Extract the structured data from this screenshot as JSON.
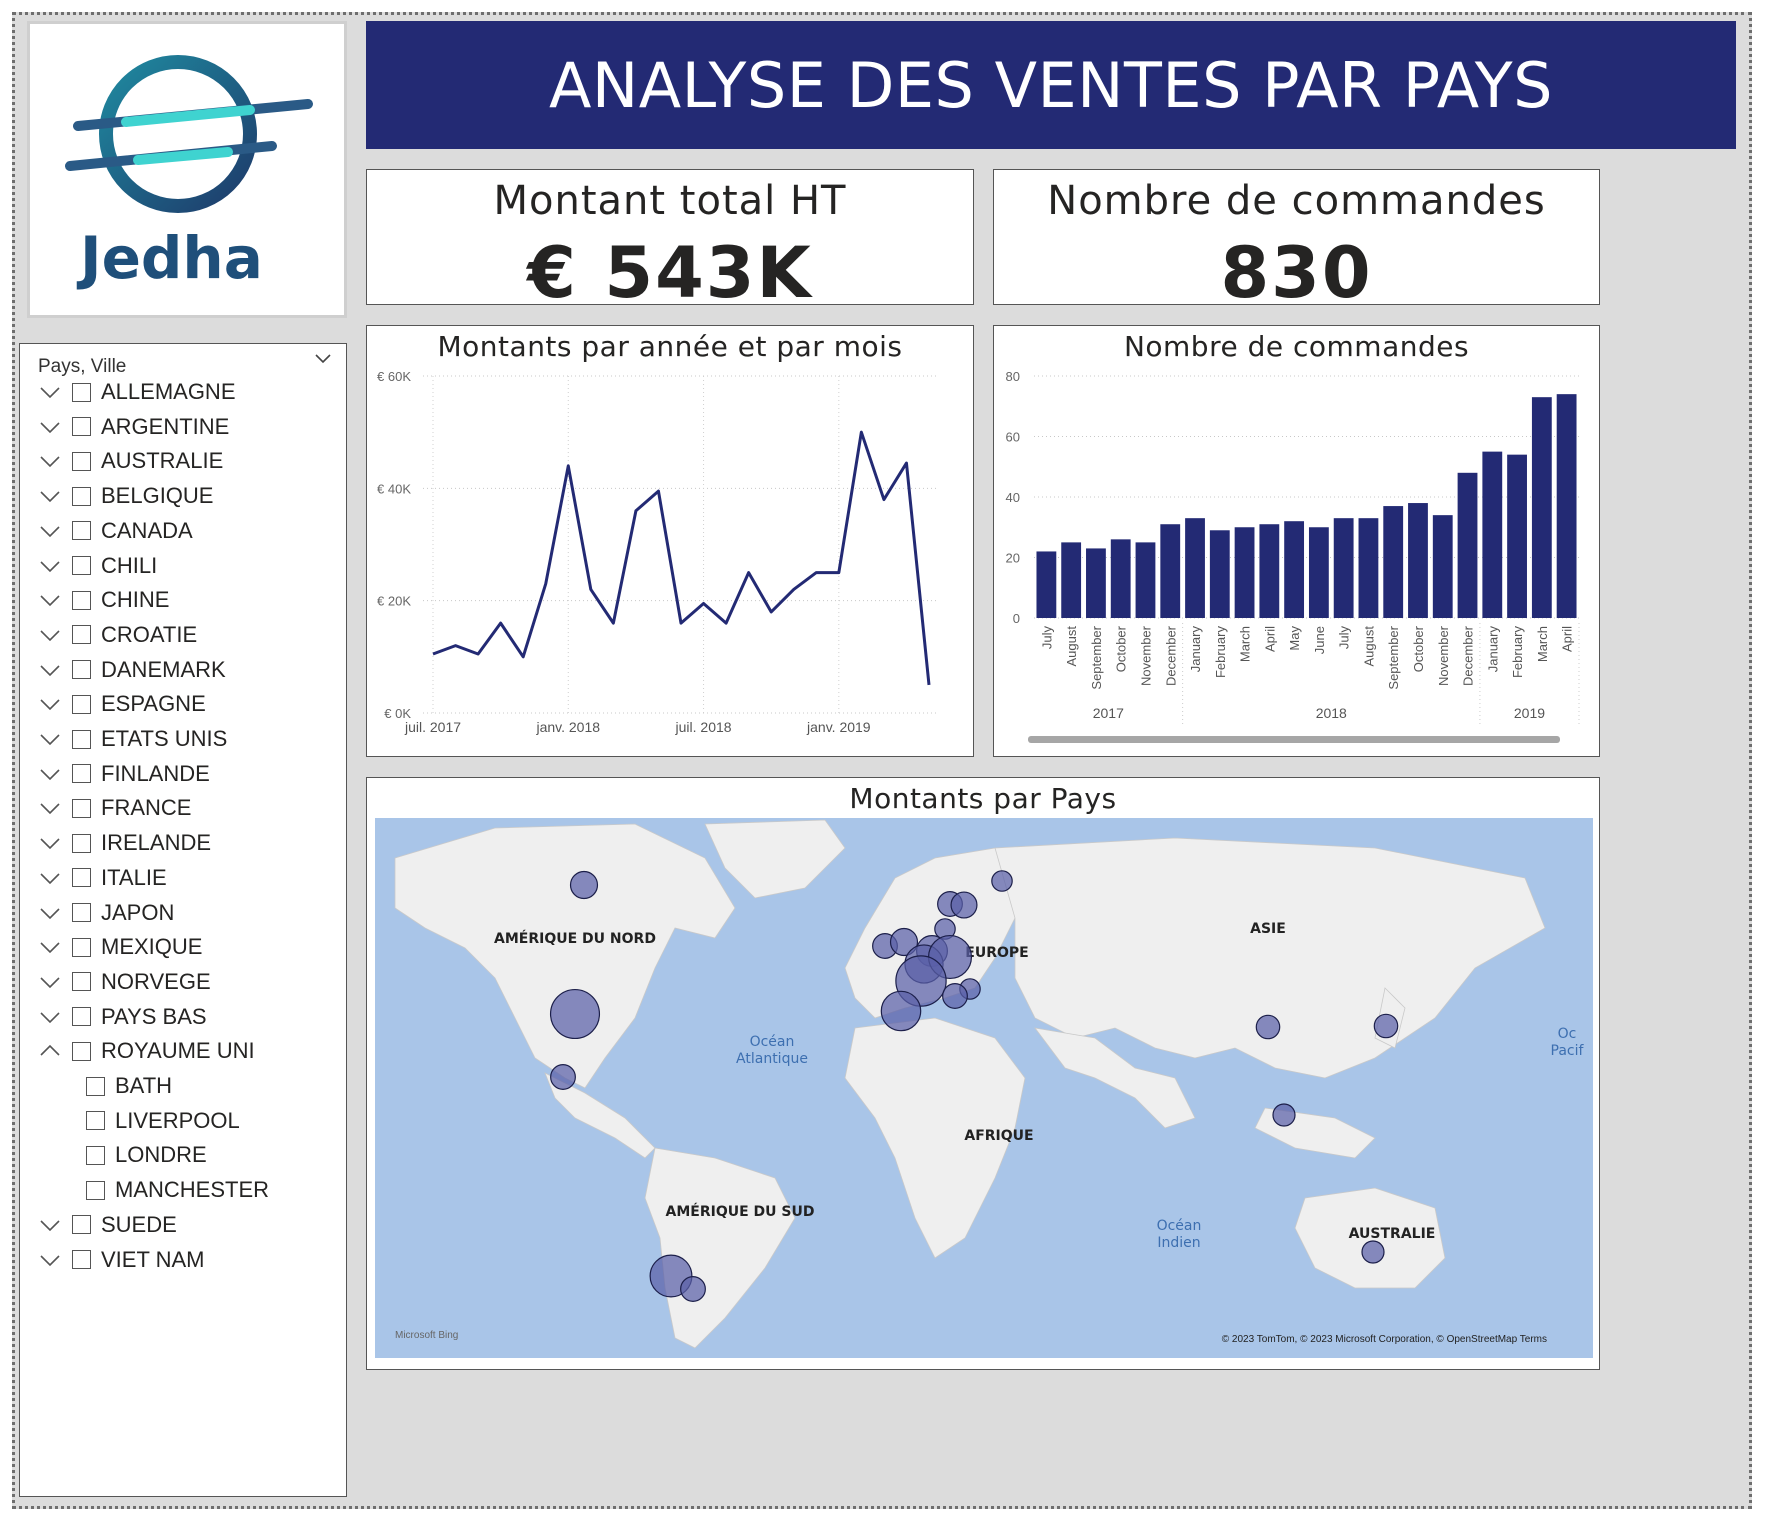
{
  "header": {
    "title": "ANALYSE DES VENTES PAR PAYS"
  },
  "logo": {
    "text": "Jedha",
    "icon": "jedha-logo-icon"
  },
  "kpis": {
    "total": {
      "title": "Montant total HT",
      "value": "€ 543K"
    },
    "orders": {
      "title": "Nombre de commandes",
      "value": "830"
    }
  },
  "slicer": {
    "header": "Pays, Ville",
    "items": [
      {
        "label": "ALLEMAGNE",
        "expanded": false
      },
      {
        "label": "ARGENTINE",
        "expanded": false
      },
      {
        "label": "AUSTRALIE",
        "expanded": false
      },
      {
        "label": "BELGIQUE",
        "expanded": false
      },
      {
        "label": "CANADA",
        "expanded": false
      },
      {
        "label": "CHILI",
        "expanded": false
      },
      {
        "label": "CHINE",
        "expanded": false
      },
      {
        "label": "CROATIE",
        "expanded": false
      },
      {
        "label": "DANEMARK",
        "expanded": false
      },
      {
        "label": "ESPAGNE",
        "expanded": false
      },
      {
        "label": "ETATS UNIS",
        "expanded": false
      },
      {
        "label": "FINLANDE",
        "expanded": false
      },
      {
        "label": "FRANCE",
        "expanded": false
      },
      {
        "label": "IRELANDE",
        "expanded": false
      },
      {
        "label": "ITALIE",
        "expanded": false
      },
      {
        "label": "JAPON",
        "expanded": false
      },
      {
        "label": "MEXIQUE",
        "expanded": false
      },
      {
        "label": "NORVEGE",
        "expanded": false
      },
      {
        "label": "PAYS BAS",
        "expanded": false
      },
      {
        "label": "ROYAUME UNI",
        "expanded": true,
        "children": [
          "BATH",
          "LIVERPOOL",
          "LONDRE",
          "MANCHESTER"
        ]
      },
      {
        "label": "SUEDE",
        "expanded": false
      },
      {
        "label": "VIET NAM",
        "expanded": false
      }
    ]
  },
  "colors": {
    "accent": "#232a74",
    "bar": "#232a74",
    "map_water": "#a9c5e8",
    "map_land": "#efefef",
    "bubble": "#5a5fa8"
  },
  "chart_data": [
    {
      "type": "line",
      "title": "Montants par année et par mois",
      "x": [
        "2017-07",
        "2017-08",
        "2017-09",
        "2017-10",
        "2017-11",
        "2017-12",
        "2018-01",
        "2018-02",
        "2018-03",
        "2018-04",
        "2018-05",
        "2018-06",
        "2018-07",
        "2018-08",
        "2018-09",
        "2018-10",
        "2018-11",
        "2018-12",
        "2019-01",
        "2019-02",
        "2019-03",
        "2019-04",
        "2019-05"
      ],
      "values": [
        10500,
        12000,
        10500,
        16000,
        10000,
        23000,
        44000,
        22000,
        16000,
        36000,
        39500,
        16000,
        19500,
        16000,
        25000,
        18000,
        22000,
        25000,
        25000,
        50000,
        38000,
        44500,
        5000
      ],
      "ylim": [
        0,
        60000
      ],
      "yticks": [
        "€ 60K",
        "€ 40K",
        "€ 20K",
        "€ 0K"
      ],
      "xticks": [
        "juil. 2017",
        "janv. 2018",
        "juil. 2018",
        "janv. 2019"
      ],
      "grid": true
    },
    {
      "type": "bar",
      "title": "Nombre de commandes",
      "categories": [
        "July",
        "August",
        "September",
        "October",
        "November",
        "December",
        "January",
        "February",
        "March",
        "April",
        "May",
        "June",
        "July",
        "August",
        "September",
        "October",
        "November",
        "December",
        "January",
        "February",
        "March",
        "April"
      ],
      "years": [
        {
          "label": "2017",
          "from": 0,
          "to": 5
        },
        {
          "label": "2018",
          "from": 6,
          "to": 17
        },
        {
          "label": "2019",
          "from": 18,
          "to": 21
        }
      ],
      "values": [
        22,
        25,
        23,
        26,
        25,
        31,
        33,
        29,
        30,
        31,
        32,
        30,
        33,
        33,
        37,
        38,
        34,
        48,
        55,
        54,
        73,
        74
      ],
      "ylim": [
        0,
        80
      ],
      "yticks": [
        "80",
        "60",
        "40",
        "20",
        "0"
      ],
      "grid": true
    }
  ],
  "map": {
    "title": "Montants par Pays",
    "region_labels": [
      {
        "text": "AMÉRIQUE DU NORD",
        "x": 200,
        "y": 125
      },
      {
        "text": "EUROPE",
        "x": 622,
        "y": 139
      },
      {
        "text": "ASIE",
        "x": 893,
        "y": 115
      },
      {
        "text": "AFRIQUE",
        "x": 624,
        "y": 322
      },
      {
        "text": "AMÉRIQUE DU SUD",
        "x": 365,
        "y": 398
      },
      {
        "text": "AUSTRALIE",
        "x": 1017,
        "y": 420
      }
    ],
    "ocean_labels": [
      {
        "lines": [
          "Océan",
          "Atlantique"
        ],
        "x": 397,
        "y": 228
      },
      {
        "lines": [
          "Océan",
          "Indien"
        ],
        "x": 804,
        "y": 412
      },
      {
        "lines": [
          "Oc",
          "Pacif"
        ],
        "x": 1192,
        "y": 220
      }
    ],
    "bubbles": [
      {
        "name": "CANADA",
        "lon": -94,
        "lat": 52,
        "value": 8
      },
      {
        "name": "ETATS UNIS",
        "lon": -97,
        "lat": 38,
        "value": 42
      },
      {
        "name": "MEXIQUE",
        "lon": -100,
        "lat": 21,
        "value": 6
      },
      {
        "name": "FINLANDE",
        "lon": 25,
        "lat": 62,
        "value": 3
      },
      {
        "name": "NORVEGE",
        "lon": 8,
        "lat": 59,
        "value": 6
      },
      {
        "name": "SUEDE",
        "lon": 15,
        "lat": 59,
        "value": 7
      },
      {
        "name": "DANEMARK",
        "lon": 10,
        "lat": 56,
        "value": 3
      },
      {
        "name": "IRELANDE",
        "lon": -8,
        "lat": 53,
        "value": 6
      },
      {
        "name": "ROYAUME UNI",
        "lon": -3,
        "lat": 54,
        "value": 8
      },
      {
        "name": "PAYS BAS",
        "lon": 5,
        "lat": 52,
        "value": 12
      },
      {
        "name": "BELGIQUE",
        "lon": 3,
        "lat": 51,
        "value": 22
      },
      {
        "name": "ALLEMAGNE",
        "lon": 10,
        "lat": 51,
        "value": 30
      },
      {
        "name": "FRANCE",
        "lon": 2,
        "lat": 47,
        "value": 45
      },
      {
        "name": "CROATIE",
        "lon": 16,
        "lat": 45,
        "value": 3
      },
      {
        "name": "ITALIE",
        "lon": 12,
        "lat": 43,
        "value": 6
      },
      {
        "name": "ESPAGNE",
        "lon": -4,
        "lat": 40,
        "value": 24
      },
      {
        "name": "CHINE",
        "lon": 104,
        "lat": 35,
        "value": 5
      },
      {
        "name": "JAPON",
        "lon": 138,
        "lat": 36,
        "value": 5
      },
      {
        "name": "VIET NAM",
        "lon": 106,
        "lat": 16,
        "value": 4
      },
      {
        "name": "CHILI",
        "lon": -71,
        "lat": -33,
        "value": 28
      },
      {
        "name": "ARGENTINE",
        "lon": -64,
        "lat": -35,
        "value": 6
      },
      {
        "name": "AUSTRALIE",
        "lon": 135,
        "lat": -25,
        "value": 4
      }
    ],
    "attribution": "© 2023 TomTom, © 2023 Microsoft Corporation, © OpenStreetMap  Terms",
    "bing": "Microsoft Bing"
  }
}
